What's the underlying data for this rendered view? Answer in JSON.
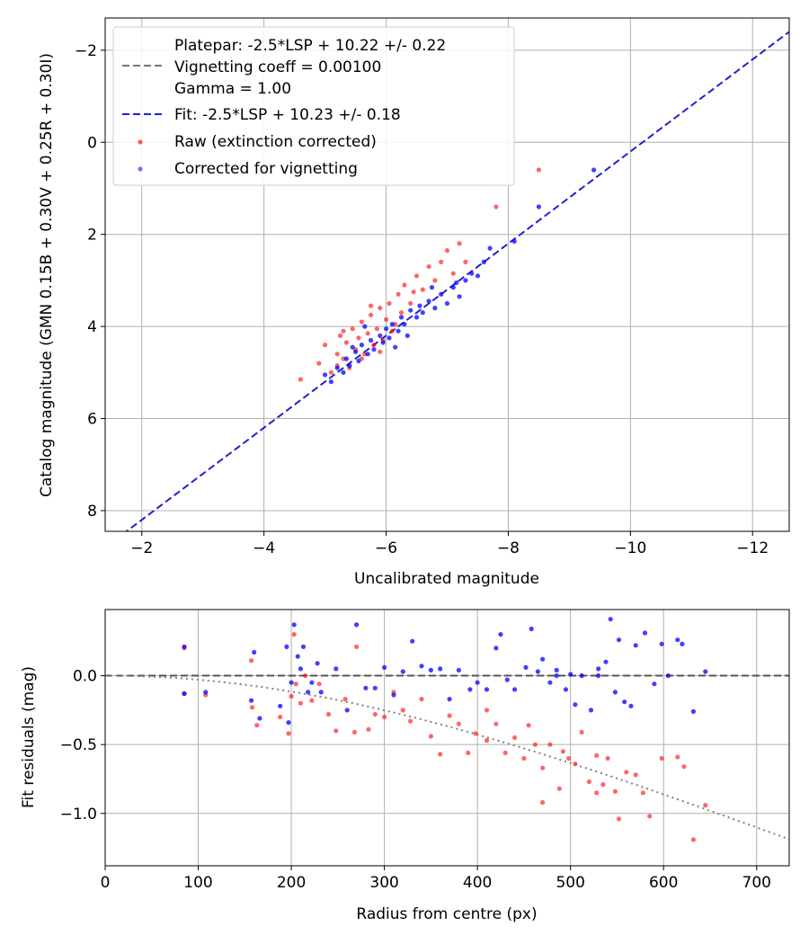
{
  "chart_data": [
    {
      "type": "scatter",
      "xlabel": "Uncalibrated magnitude",
      "ylabel": "Catalog magnitude (GMN 0.15B + 0.30V + 0.25R + 0.30I)",
      "xlim": [
        -1.4,
        -12.6
      ],
      "ylim": [
        8.45,
        -2.7
      ],
      "x_inverted": true,
      "y_inverted": true,
      "grid": true,
      "legend_position": "upper-left",
      "xticks": [
        -2,
        -4,
        -6,
        -8,
        -10,
        -12
      ],
      "yticks": [
        -2,
        0,
        2,
        4,
        6,
        8
      ],
      "xtick_labels": [
        "−2",
        "−4",
        "−6",
        "−8",
        "−10",
        "−12"
      ],
      "ytick_labels": [
        "−2",
        "0",
        "2",
        "4",
        "6",
        "8"
      ],
      "legend": {
        "platepar_line1": "Platepar: -2.5*LSP + 10.22 +/- 0.22",
        "platepar_line2": "Vignetting coeff = 0.00100",
        "platepar_line3": "Gamma = 1.00",
        "fit": "Fit: -2.5*LSP + 10.23 +/- 0.18",
        "raw": "Raw (extinction corrected)",
        "corrected": "Corrected for vignetting"
      },
      "lines": [
        {
          "name": "Fit: -2.5*LSP + 10.23 +/- 0.18",
          "color": "#2222cc",
          "style": "dashed",
          "points": [
            [
              -1.4,
              8.8
            ],
            [
              -12.6,
              -2.4
            ]
          ]
        }
      ],
      "series": [
        {
          "name": "Raw (extinction corrected)",
          "color": "#ff0000",
          "points": [
            [
              -4.6,
              5.15
            ],
            [
              -4.9,
              4.8
            ],
            [
              -5.0,
              4.4
            ],
            [
              -5.1,
              5.0
            ],
            [
              -5.2,
              4.6
            ],
            [
              -5.25,
              4.2
            ],
            [
              -5.3,
              4.7
            ],
            [
              -5.35,
              4.35
            ],
            [
              -5.4,
              4.9
            ],
            [
              -5.45,
              4.05
            ],
            [
              -5.5,
              4.5
            ],
            [
              -5.55,
              4.25
            ],
            [
              -5.6,
              3.9
            ],
            [
              -5.65,
              4.6
            ],
            [
              -5.7,
              4.15
            ],
            [
              -5.75,
              3.75
            ],
            [
              -5.8,
              4.4
            ],
            [
              -5.85,
              4.05
            ],
            [
              -5.9,
              3.6
            ],
            [
              -5.95,
              4.3
            ],
            [
              -6.0,
              3.85
            ],
            [
              -6.05,
              3.5
            ],
            [
              -6.1,
              4.1
            ],
            [
              -6.2,
              3.3
            ],
            [
              -6.25,
              3.7
            ],
            [
              -6.3,
              3.1
            ],
            [
              -6.4,
              3.5
            ],
            [
              -6.5,
              2.9
            ],
            [
              -6.6,
              3.2
            ],
            [
              -6.7,
              2.7
            ],
            [
              -6.8,
              3.0
            ],
            [
              -6.9,
              2.6
            ],
            [
              -7.0,
              2.35
            ],
            [
              -7.1,
              2.85
            ],
            [
              -7.2,
              2.2
            ],
            [
              -7.3,
              2.6
            ],
            [
              -7.8,
              1.4
            ],
            [
              -8.5,
              0.6
            ],
            [
              -5.3,
              4.1
            ],
            [
              -5.6,
              4.7
            ],
            [
              -5.9,
              4.55
            ],
            [
              -6.15,
              3.95
            ],
            [
              -5.2,
              4.85
            ],
            [
              -5.75,
              3.55
            ],
            [
              -6.45,
              3.25
            ]
          ]
        },
        {
          "name": "Corrected for vignetting",
          "color": "#0000ff",
          "points": [
            [
              -5.0,
              5.05
            ],
            [
              -5.1,
              5.2
            ],
            [
              -5.2,
              4.9
            ],
            [
              -5.3,
              5.0
            ],
            [
              -5.35,
              4.7
            ],
            [
              -5.4,
              4.85
            ],
            [
              -5.5,
              4.55
            ],
            [
              -5.55,
              4.75
            ],
            [
              -5.6,
              4.4
            ],
            [
              -5.7,
              4.6
            ],
            [
              -5.75,
              4.3
            ],
            [
              -5.8,
              4.5
            ],
            [
              -5.9,
              4.2
            ],
            [
              -5.95,
              4.35
            ],
            [
              -6.0,
              4.05
            ],
            [
              -6.05,
              4.25
            ],
            [
              -6.1,
              3.95
            ],
            [
              -6.2,
              4.1
            ],
            [
              -6.25,
              3.8
            ],
            [
              -6.3,
              3.95
            ],
            [
              -6.4,
              3.65
            ],
            [
              -6.5,
              3.8
            ],
            [
              -6.55,
              3.55
            ],
            [
              -6.6,
              3.7
            ],
            [
              -6.7,
              3.45
            ],
            [
              -6.8,
              3.6
            ],
            [
              -6.9,
              3.3
            ],
            [
              -7.0,
              3.5
            ],
            [
              -7.1,
              3.15
            ],
            [
              -7.2,
              3.35
            ],
            [
              -7.3,
              3.0
            ],
            [
              -7.4,
              2.85
            ],
            [
              -7.5,
              2.9
            ],
            [
              -7.6,
              2.6
            ],
            [
              -7.7,
              2.3
            ],
            [
              -8.1,
              2.15
            ],
            [
              -8.5,
              1.4
            ],
            [
              -9.4,
              0.6
            ],
            [
              -5.65,
              4.0
            ],
            [
              -6.15,
              4.45
            ],
            [
              -6.75,
              3.15
            ],
            [
              -5.45,
              4.45
            ],
            [
              -6.35,
              4.2
            ],
            [
              -7.15,
              3.05
            ]
          ]
        }
      ]
    },
    {
      "type": "scatter",
      "xlabel": "Radius from centre (px)",
      "ylabel": "Fit residuals (mag)",
      "xlim": [
        0,
        735
      ],
      "ylim": [
        -1.38,
        0.48
      ],
      "grid": true,
      "xticks": [
        0,
        100,
        200,
        300,
        400,
        500,
        600,
        700
      ],
      "yticks": [
        -1.0,
        -0.5,
        0.0
      ],
      "xtick_labels": [
        "0",
        "100",
        "200",
        "300",
        "400",
        "500",
        "600",
        "700"
      ],
      "ytick_labels": [
        "−1.0",
        "−0.5",
        "0.0"
      ],
      "lines": [
        {
          "name": "zero",
          "color": "#555555",
          "style": "dashed",
          "points": [
            [
              0,
              0
            ],
            [
              735,
              0
            ]
          ]
        },
        {
          "name": "vignetting model",
          "color": "#808080",
          "style": "dotted",
          "function": "vignetting"
        }
      ],
      "series": [
        {
          "name": "Raw (extinction corrected)",
          "color": "#ff0000",
          "points": [
            [
              85,
              0.2
            ],
            [
              85,
              -0.13
            ],
            [
              108,
              -0.14
            ],
            [
              157,
              0.11
            ],
            [
              158,
              -0.23
            ],
            [
              163,
              -0.36
            ],
            [
              188,
              -0.3
            ],
            [
              197,
              -0.42
            ],
            [
              200,
              -0.15
            ],
            [
              203,
              0.3
            ],
            [
              205,
              -0.06
            ],
            [
              210,
              -0.2
            ],
            [
              215,
              0.0
            ],
            [
              222,
              -0.18
            ],
            [
              230,
              -0.06
            ],
            [
              240,
              -0.28
            ],
            [
              248,
              -0.4
            ],
            [
              258,
              -0.17
            ],
            [
              268,
              -0.41
            ],
            [
              270,
              0.21
            ],
            [
              283,
              -0.39
            ],
            [
              290,
              -0.28
            ],
            [
              300,
              -0.3
            ],
            [
              310,
              -0.12
            ],
            [
              320,
              -0.25
            ],
            [
              328,
              -0.33
            ],
            [
              340,
              -0.17
            ],
            [
              350,
              -0.44
            ],
            [
              360,
              -0.57
            ],
            [
              370,
              -0.29
            ],
            [
              380,
              -0.35
            ],
            [
              390,
              -0.56
            ],
            [
              398,
              -0.42
            ],
            [
              410,
              -0.47
            ],
            [
              420,
              -0.35
            ],
            [
              430,
              -0.56
            ],
            [
              440,
              -0.45
            ],
            [
              450,
              -0.6
            ],
            [
              455,
              -0.36
            ],
            [
              462,
              -0.5
            ],
            [
              470,
              -0.67
            ],
            [
              478,
              -0.5
            ],
            [
              488,
              -0.82
            ],
            [
              492,
              -0.55
            ],
            [
              498,
              -0.6
            ],
            [
              505,
              -0.64
            ],
            [
              512,
              -0.41
            ],
            [
              520,
              -0.77
            ],
            [
              528,
              -0.58
            ],
            [
              535,
              -0.79
            ],
            [
              540,
              -0.6
            ],
            [
              548,
              -0.84
            ],
            [
              552,
              -1.04
            ],
            [
              560,
              -0.7
            ],
            [
              570,
              -0.72
            ],
            [
              578,
              -0.85
            ],
            [
              585,
              -1.02
            ],
            [
              598,
              -0.6
            ],
            [
              615,
              -0.59
            ],
            [
              622,
              -0.66
            ],
            [
              632,
              -1.19
            ],
            [
              645,
              -0.94
            ],
            [
              528,
              -0.85
            ],
            [
              470,
              -0.92
            ],
            [
              410,
              -0.25
            ]
          ]
        },
        {
          "name": "Corrected for vignetting",
          "color": "#0000ff",
          "points": [
            [
              85,
              0.21
            ],
            [
              85,
              -0.13
            ],
            [
              108,
              -0.12
            ],
            [
              157,
              -0.18
            ],
            [
              160,
              0.17
            ],
            [
              166,
              -0.31
            ],
            [
              188,
              -0.22
            ],
            [
              195,
              0.21
            ],
            [
              197,
              -0.34
            ],
            [
              200,
              -0.05
            ],
            [
              203,
              0.37
            ],
            [
              207,
              0.14
            ],
            [
              210,
              0.05
            ],
            [
              213,
              0.21
            ],
            [
              218,
              -0.12
            ],
            [
              222,
              -0.05
            ],
            [
              228,
              0.09
            ],
            [
              232,
              -0.12
            ],
            [
              248,
              0.05
            ],
            [
              260,
              -0.25
            ],
            [
              270,
              0.37
            ],
            [
              280,
              -0.09
            ],
            [
              290,
              -0.09
            ],
            [
              300,
              0.06
            ],
            [
              310,
              -0.14
            ],
            [
              320,
              0.03
            ],
            [
              330,
              0.25
            ],
            [
              340,
              0.07
            ],
            [
              350,
              0.04
            ],
            [
              360,
              0.05
            ],
            [
              370,
              -0.17
            ],
            [
              380,
              0.04
            ],
            [
              392,
              -0.1
            ],
            [
              400,
              -0.05
            ],
            [
              410,
              -0.1
            ],
            [
              420,
              0.2
            ],
            [
              425,
              0.3
            ],
            [
              432,
              -0.03
            ],
            [
              440,
              -0.1
            ],
            [
              452,
              0.06
            ],
            [
              458,
              0.34
            ],
            [
              465,
              0.03
            ],
            [
              470,
              0.12
            ],
            [
              478,
              -0.05
            ],
            [
              485,
              0.04
            ],
            [
              495,
              -0.1
            ],
            [
              500,
              0.01
            ],
            [
              505,
              -0.21
            ],
            [
              512,
              0.0
            ],
            [
              522,
              -0.25
            ],
            [
              530,
              0.05
            ],
            [
              538,
              0.1
            ],
            [
              543,
              0.41
            ],
            [
              548,
              -0.12
            ],
            [
              552,
              0.26
            ],
            [
              558,
              -0.19
            ],
            [
              565,
              -0.22
            ],
            [
              570,
              0.22
            ],
            [
              580,
              0.31
            ],
            [
              590,
              -0.06
            ],
            [
              598,
              0.23
            ],
            [
              605,
              0.0
            ],
            [
              615,
              0.26
            ],
            [
              620,
              0.23
            ],
            [
              632,
              -0.26
            ],
            [
              645,
              0.03
            ],
            [
              485,
              0.0
            ],
            [
              530,
              0.0
            ]
          ]
        }
      ]
    }
  ]
}
